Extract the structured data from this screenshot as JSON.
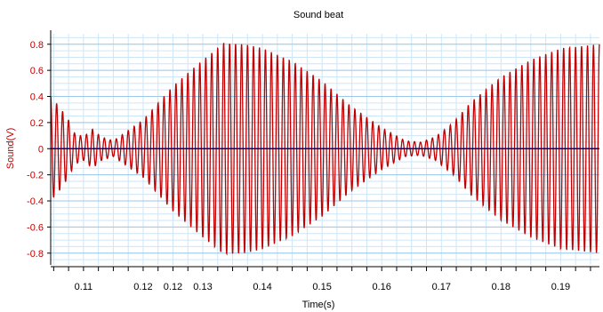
{
  "chart_data": {
    "type": "line",
    "title": "Sound beat",
    "xlabel": "Time(s)",
    "ylabel": "Sound(V)",
    "xlim": [
      0.1045,
      0.1965
    ],
    "ylim": [
      -0.89,
      0.88
    ],
    "x_tick_values": [
      0.11,
      0.12,
      0.125,
      0.13,
      0.14,
      0.15,
      0.16,
      0.17,
      0.18,
      0.19
    ],
    "x_tick_labels": [
      "0.11",
      "0.12",
      "0.12",
      "0.13",
      "0.14",
      "0.15",
      "0.16",
      "0.17",
      "0.18",
      "0.19"
    ],
    "y_tick_values": [
      0.8,
      0.6,
      0.4,
      0.2,
      0,
      -0.2,
      -0.4,
      -0.6,
      -0.8
    ],
    "y_tick_labels": [
      "0.8",
      "0.6",
      "0.4",
      "0.2",
      "0",
      "-0.2",
      "-0.4",
      "-0.6",
      "-0.8"
    ],
    "grid": true,
    "series": [
      {
        "type": "sampled-waveform",
        "color": "#c00000",
        "carrier_cycles_per_second": 1000,
        "envelope": {
          "x": [
            0.1045,
            0.106,
            0.1075,
            0.1085,
            0.11,
            0.1115,
            0.113,
            0.115,
            0.12,
            0.125,
            0.13,
            0.1335,
            0.137,
            0.14,
            0.145,
            0.15,
            0.155,
            0.16,
            0.164,
            0.1665,
            0.169,
            0.172,
            0.175,
            0.18,
            0.185,
            0.19,
            0.1965
          ],
          "y": [
            0.4,
            0.32,
            0.22,
            0.12,
            0.09,
            0.15,
            0.09,
            0.06,
            0.22,
            0.48,
            0.68,
            0.81,
            0.8,
            0.77,
            0.67,
            0.52,
            0.32,
            0.16,
            0.06,
            0.05,
            0.09,
            0.2,
            0.36,
            0.55,
            0.68,
            0.77,
            0.8
          ]
        }
      },
      {
        "type": "line",
        "color": "#00008b",
        "x": [
          0.1045,
          0.1965
        ],
        "y": [
          0,
          0
        ]
      }
    ]
  }
}
